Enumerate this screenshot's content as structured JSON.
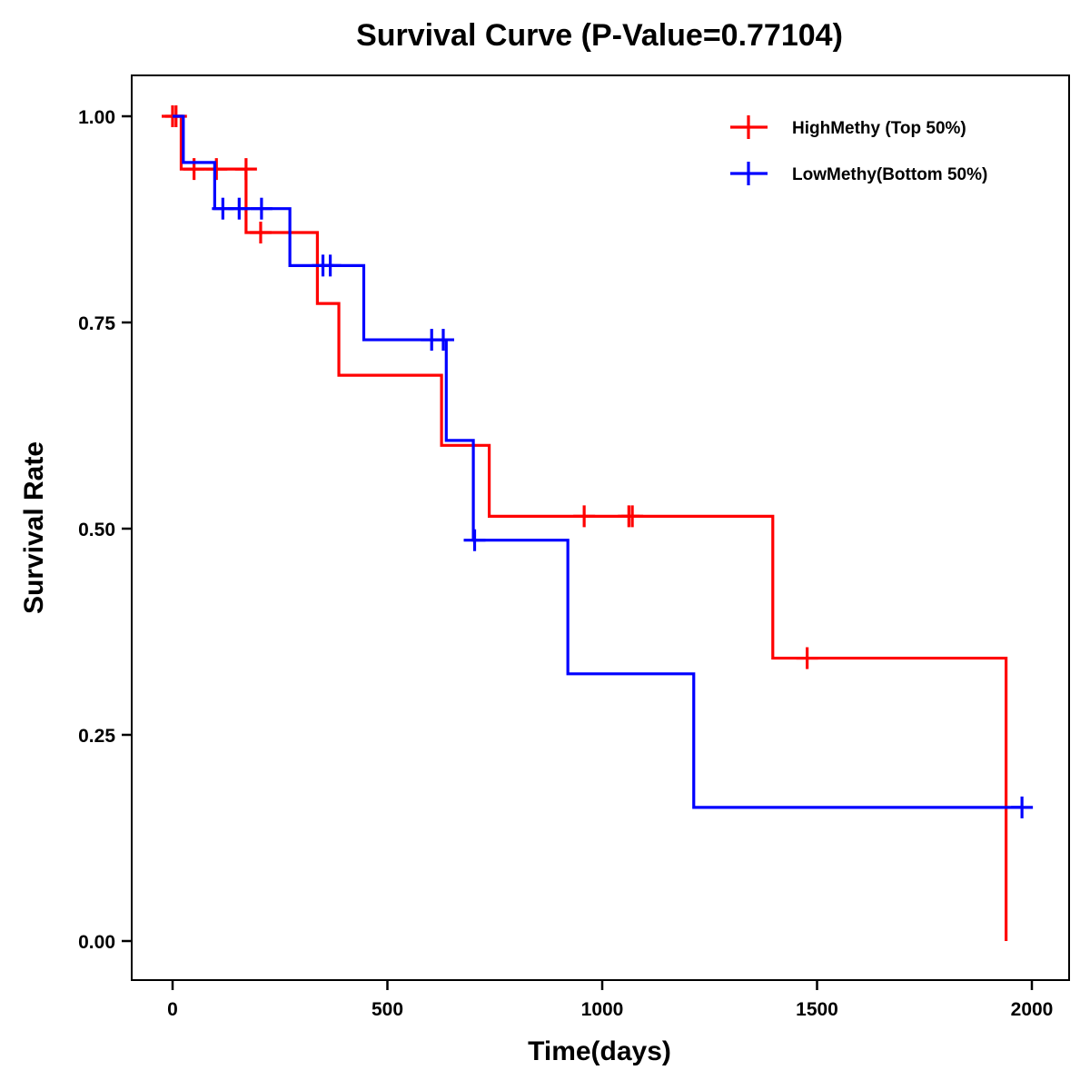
{
  "chart_data": {
    "type": "line",
    "subtype": "kaplan-meier-step",
    "title": "Survival Curve (P-Value=0.77104)",
    "xlabel": "Time(days)",
    "ylabel": "Survival Rate",
    "xlim": [
      -100,
      2080
    ],
    "ylim": [
      -0.045,
      1.05
    ],
    "x_ticks": [
      0,
      500,
      1000,
      1500,
      2000
    ],
    "x_tick_labels": [
      "0",
      "500",
      "1000",
      "1500",
      "2000"
    ],
    "y_ticks": [
      0,
      0.25,
      0.5,
      0.75,
      1.0
    ],
    "y_tick_labels": [
      "0.00",
      "0.25",
      "0.50",
      "0.75",
      "1.00"
    ],
    "grid": false,
    "legend_position": "top-right",
    "series": [
      {
        "name": "HighMethy (Top 50%)",
        "color": "#ff0000",
        "steps": [
          [
            0,
            1.0
          ],
          [
            20,
            0.936
          ],
          [
            171,
            0.859
          ],
          [
            337,
            0.773
          ],
          [
            387,
            0.686
          ],
          [
            626,
            0.601
          ],
          [
            737,
            0.515
          ],
          [
            1397,
            0.343
          ],
          [
            1940,
            0.0
          ]
        ],
        "end_time": 1940,
        "censored": [
          [
            0,
            1.0
          ],
          [
            8,
            1.0
          ],
          [
            50,
            0.936
          ],
          [
            102,
            0.936
          ],
          [
            171,
            0.936
          ],
          [
            205,
            0.859
          ],
          [
            958,
            0.515
          ],
          [
            1062,
            0.515
          ],
          [
            1070,
            0.515
          ],
          [
            1477,
            0.343
          ]
        ]
      },
      {
        "name": "LowMethy(Bottom 50%)",
        "color": "#0000ff",
        "steps": [
          [
            0,
            1.0
          ],
          [
            25,
            0.944
          ],
          [
            98,
            0.888
          ],
          [
            273,
            0.819
          ],
          [
            445,
            0.729
          ],
          [
            637,
            0.607
          ],
          [
            700,
            0.486
          ],
          [
            920,
            0.324
          ],
          [
            1213,
            0.162
          ]
        ],
        "end_time": 1977,
        "censored": [
          [
            117,
            0.888
          ],
          [
            155,
            0.888
          ],
          [
            207,
            0.888
          ],
          [
            350,
            0.819
          ],
          [
            367,
            0.819
          ],
          [
            603,
            0.729
          ],
          [
            630,
            0.729
          ],
          [
            703,
            0.486
          ],
          [
            1977,
            0.162
          ]
        ]
      }
    ]
  }
}
